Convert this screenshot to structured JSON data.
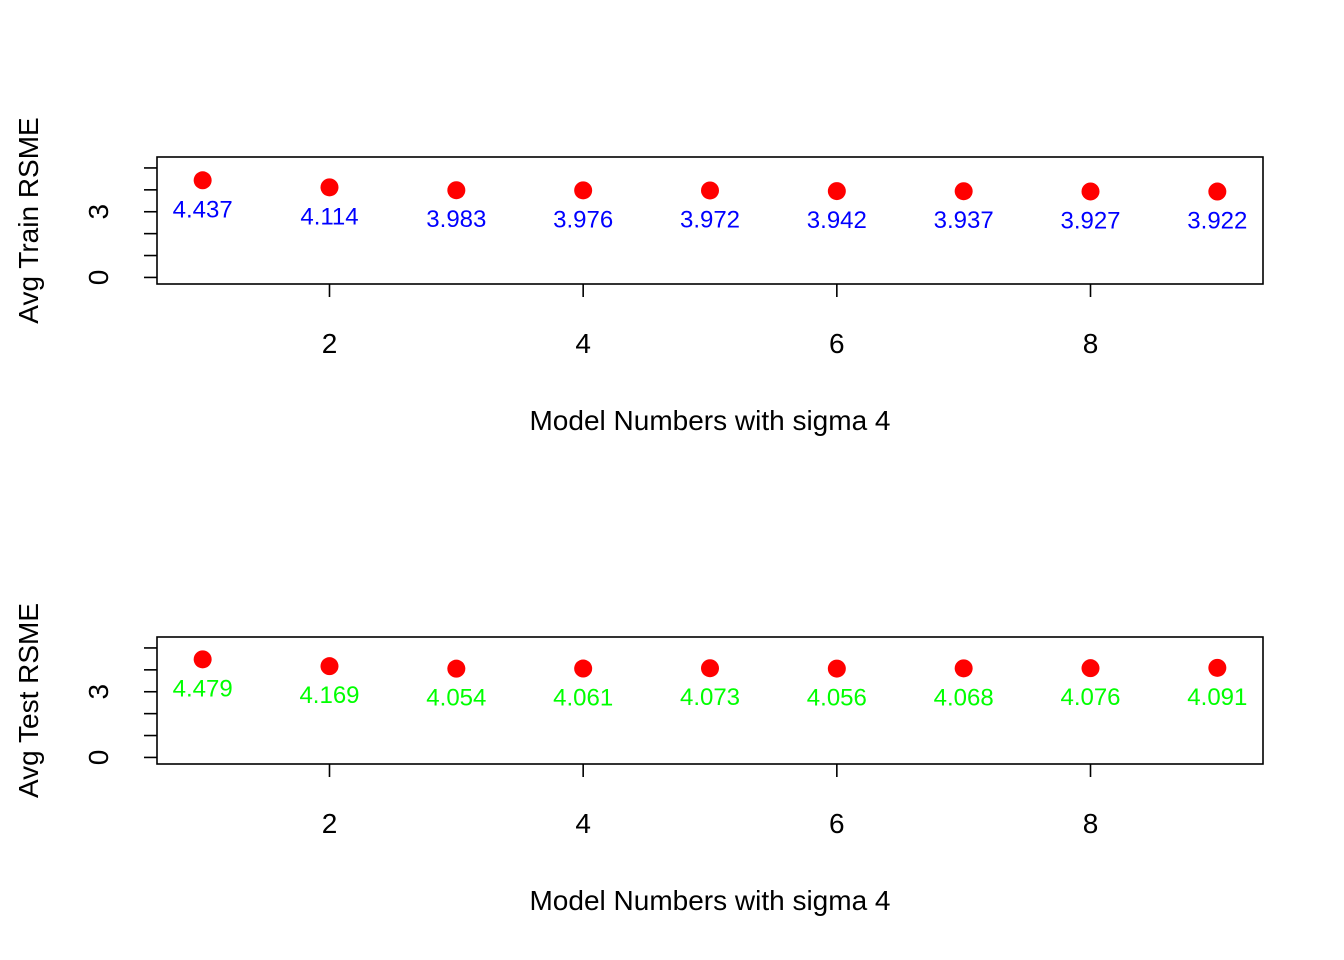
{
  "chart_data": [
    {
      "type": "scatter",
      "x": [
        1,
        2,
        3,
        4,
        5,
        6,
        7,
        8,
        9
      ],
      "y": [
        4.437,
        4.114,
        3.983,
        3.976,
        3.972,
        3.942,
        3.937,
        3.927,
        3.922
      ],
      "point_labels": [
        "4.437",
        "4.114",
        "3.983",
        "3.976",
        "3.972",
        "3.942",
        "3.937",
        "3.927",
        "3.922"
      ],
      "xlabel": "Model Numbers with sigma 4",
      "ylabel": "Avg Train RSME",
      "xlim": [
        0.64,
        9.36
      ],
      "ylim": [
        -0.3,
        5.5
      ],
      "x_ticks": [
        2,
        4,
        6,
        8
      ],
      "y_ticks": [
        0,
        1,
        2,
        3,
        4,
        5
      ],
      "y_tick_labels": [
        "0",
        "",
        "",
        "3",
        "",
        ""
      ],
      "point_color": "#ff0000",
      "label_color": "#0000ff",
      "grid": false
    },
    {
      "type": "scatter",
      "x": [
        1,
        2,
        3,
        4,
        5,
        6,
        7,
        8,
        9
      ],
      "y": [
        4.479,
        4.169,
        4.054,
        4.061,
        4.073,
        4.056,
        4.068,
        4.076,
        4.091
      ],
      "point_labels": [
        "4.479",
        "4.169",
        "4.054",
        "4.061",
        "4.073",
        "4.056",
        "4.068",
        "4.076",
        "4.091"
      ],
      "xlabel": "Model Numbers with sigma 4",
      "ylabel": "Avg Test RSME",
      "xlim": [
        0.64,
        9.36
      ],
      "ylim": [
        -0.3,
        5.5
      ],
      "x_ticks": [
        2,
        4,
        6,
        8
      ],
      "y_ticks": [
        0,
        1,
        2,
        3,
        4,
        5
      ],
      "y_tick_labels": [
        "0",
        "",
        "",
        "3",
        "",
        ""
      ],
      "point_color": "#ff0000",
      "label_color": "#00ff00",
      "grid": false
    }
  ]
}
